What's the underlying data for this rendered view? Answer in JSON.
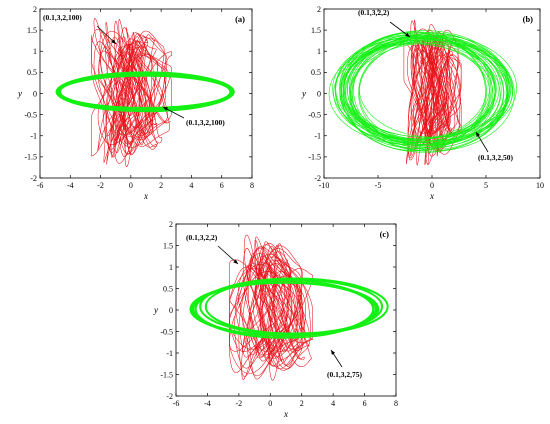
{
  "colors": {
    "red_attractor": "#e8141c",
    "green_attractor": "#14f014"
  },
  "chart_data": [
    {
      "type": "line",
      "panel_label": "(a)",
      "xlabel": "x",
      "ylabel": "y",
      "xlim": [
        -6,
        8
      ],
      "ylim": [
        -2,
        2
      ],
      "xticks": [
        -6,
        -4,
        -2,
        0,
        2,
        4,
        6,
        8
      ],
      "yticks": [
        -2,
        -1.5,
        -1,
        -0.5,
        0,
        0.5,
        1,
        1.5,
        2
      ],
      "series": [
        {
          "name": "(0.1,3,2,100)",
          "color": "#e8141c",
          "shape": "chaotic attractor",
          "x_range": [
            -2.6,
            2.7
          ],
          "y_range": [
            -1.75,
            1.8
          ]
        },
        {
          "name": "(0.1,3,2,100)",
          "color": "#14f014",
          "shape": "ellipse band",
          "x_range": [
            -4.9,
            6.8
          ],
          "y_range": [
            -0.42,
            0.5
          ]
        }
      ],
      "annotations": [
        {
          "text": "(0.1,3,2,100)",
          "target": "red attractor"
        },
        {
          "text": "(0.1,3,2,100)",
          "target": "green ellipse"
        }
      ]
    },
    {
      "type": "line",
      "panel_label": "(b)",
      "xlabel": "x",
      "ylabel": "y",
      "xlim": [
        -10,
        10
      ],
      "ylim": [
        -2,
        2
      ],
      "xticks": [
        -10,
        -5,
        0,
        5,
        10
      ],
      "yticks": [
        -2,
        -1.5,
        -1,
        -0.5,
        0,
        0.5,
        1,
        1.5,
        2
      ],
      "series": [
        {
          "name": "(0.1,3,2,2)",
          "color": "#e8141c",
          "shape": "chaotic attractor",
          "x_range": [
            -2.6,
            2.7
          ],
          "y_range": [
            -1.75,
            1.8
          ]
        },
        {
          "name": "(0.1,3,2,50)",
          "color": "#14f014",
          "shape": "ellipse band",
          "x_range": [
            -8.8,
            7.3
          ],
          "y_range": [
            -1.35,
            1.5
          ]
        }
      ],
      "annotations": [
        {
          "text": "(0.1,3,2,2)",
          "target": "red attractor"
        },
        {
          "text": "(0.1,3,2,50)",
          "target": "green ellipse"
        }
      ]
    },
    {
      "type": "line",
      "panel_label": "(c)",
      "xlabel": "x",
      "ylabel": "y",
      "xlim": [
        -6,
        8
      ],
      "ylim": [
        -2,
        2
      ],
      "xticks": [
        -6,
        -4,
        -2,
        0,
        2,
        4,
        6,
        8
      ],
      "yticks": [
        -2,
        -1.5,
        -1,
        -0.5,
        0,
        0.5,
        1,
        1.5,
        2
      ],
      "series": [
        {
          "name": "(0.1,3,2,2)",
          "color": "#e8141c",
          "shape": "chaotic attractor",
          "x_range": [
            -2.6,
            2.7
          ],
          "y_range": [
            -1.75,
            1.8
          ]
        },
        {
          "name": "(0.1,3,2,75)",
          "color": "#14f014",
          "shape": "ellipse band",
          "x_range": [
            -4.8,
            7.2
          ],
          "y_range": [
            -0.65,
            0.75
          ]
        }
      ],
      "annotations": [
        {
          "text": "(0.1,3,2,2)",
          "target": "red attractor"
        },
        {
          "text": "(0.1,3,2,75)",
          "target": "green ellipse"
        }
      ]
    }
  ]
}
